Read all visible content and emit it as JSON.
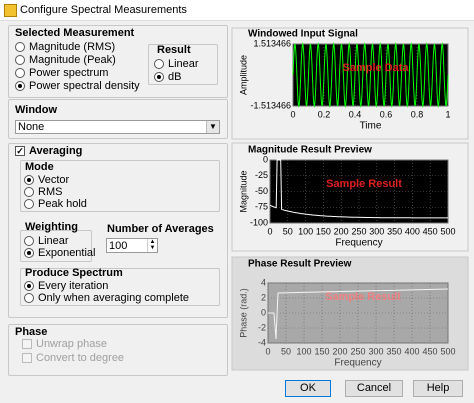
{
  "window_title": "Configure Spectral Measurements",
  "selected_measurement": {
    "title": "Selected Measurement",
    "selected": 3,
    "options": [
      "Magnitude (RMS)",
      "Magnitude (Peak)",
      "Power spectrum",
      "Power spectral density"
    ],
    "result": {
      "title": "Result",
      "selected": 1,
      "options": [
        "Linear",
        "dB"
      ]
    }
  },
  "window": {
    "label": "Window",
    "value": "None"
  },
  "averaging": {
    "label": "Averaging",
    "checked": true,
    "mode": {
      "title": "Mode",
      "selected": 0,
      "options": [
        "Vector",
        "RMS",
        "Peak hold"
      ]
    },
    "weighting": {
      "title": "Weighting",
      "selected": 1,
      "options": [
        "Linear",
        "Exponential"
      ]
    },
    "number_of_averages": {
      "label": "Number of Averages",
      "value": 100
    },
    "produce_spectrum": {
      "title": "Produce Spectrum",
      "selected": 0,
      "options": [
        "Every iteration",
        "Only when averaging complete"
      ]
    }
  },
  "phase": {
    "title": "Phase",
    "options": [
      "Unwrap phase",
      "Convert to degree"
    ]
  },
  "plots": [
    {
      "title": "Windowed Input Signal",
      "y_label": "Amplitude",
      "x_label": "Time",
      "overlay": "Sample Data",
      "yticks": [
        1.513466,
        -1.513466
      ],
      "xticks": [
        0,
        0.2,
        0.4,
        0.6,
        0.8,
        1
      ]
    },
    {
      "title": "Magnitude Result Preview",
      "y_label": "Magnitude",
      "x_label": "Frequency",
      "overlay": "Sample Result",
      "yticks": [
        0,
        -25,
        -50,
        -75,
        -100
      ],
      "xticks": [
        0,
        50,
        100,
        150,
        200,
        250,
        300,
        350,
        400,
        450,
        500
      ]
    },
    {
      "title": "Phase Result Preview",
      "y_label": "Phase (rad.)",
      "x_label": "Frequency",
      "overlay": "Sample Result",
      "yticks": [
        4,
        2,
        0,
        -2,
        -4
      ],
      "xticks": [
        0,
        50,
        100,
        150,
        200,
        250,
        300,
        350,
        400,
        450,
        500
      ]
    }
  ],
  "buttons": [
    "OK",
    "Cancel",
    "Help"
  ]
}
